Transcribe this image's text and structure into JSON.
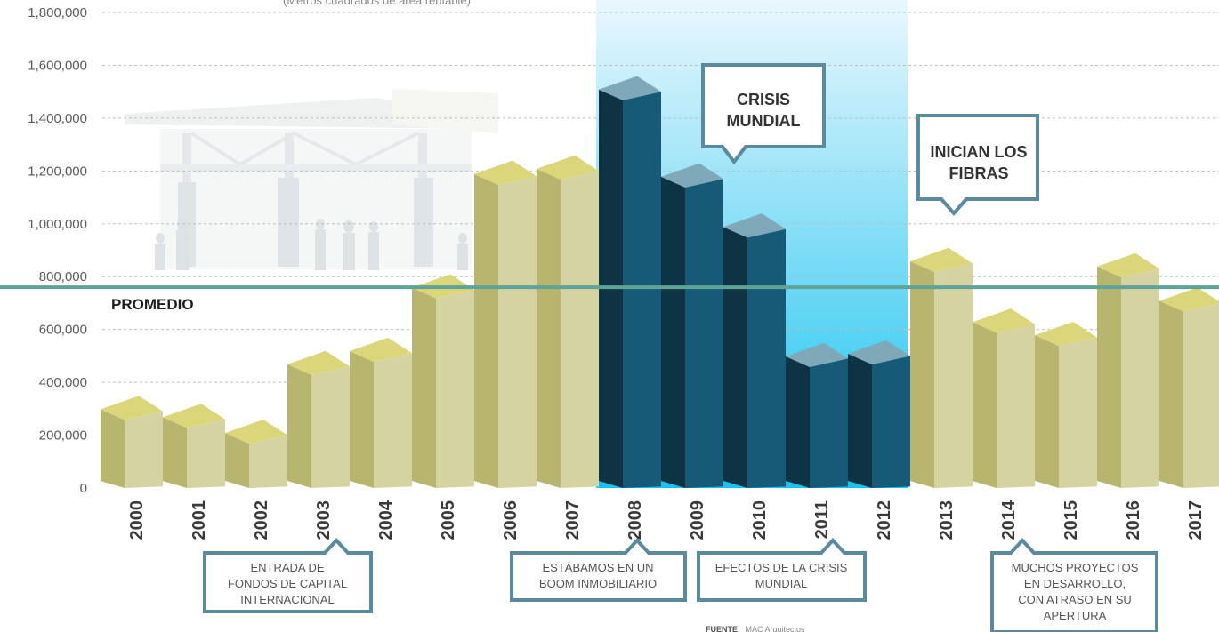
{
  "chart_data": {
    "type": "bar",
    "subtitle": "(Metros cuadrados de área rentable)",
    "categories": [
      "2000",
      "2001",
      "2002",
      "2003",
      "2004",
      "2005",
      "2006",
      "2007",
      "2008",
      "2009",
      "2010",
      "2011",
      "2012",
      "2013",
      "2014",
      "2015",
      "2016",
      "2017"
    ],
    "values": [
      290000,
      260000,
      200000,
      460000,
      510000,
      750000,
      1180000,
      1200000,
      1500000,
      1170000,
      980000,
      490000,
      500000,
      850000,
      620000,
      570000,
      830000,
      700000
    ],
    "highlight_years": [
      "2008",
      "2009",
      "2010",
      "2011",
      "2012"
    ],
    "ylim": [
      0,
      1800000
    ],
    "yticks": [
      "0",
      "200,000",
      "400,000",
      "600,000",
      "800,000",
      "1,000,000",
      "1,200,000",
      "1,400,000",
      "1,600,000",
      "1,800,000"
    ],
    "grid": true,
    "average": 760000,
    "average_label": "PROMEDIO",
    "colors": {
      "bar_front": "#d6d3a2",
      "bar_side": "#b8b66e",
      "bar_top": "#dcd67a",
      "crisis_front": "#165a78",
      "crisis_side": "#0e3344",
      "crisis_top": "#7fa8b8",
      "average_line": "#5fa396",
      "callout_border": "#5b8a9c",
      "highlight_top": "#eaf7fd",
      "highlight_bottom": "#16c3ef"
    }
  },
  "callouts": {
    "crisis": [
      "CRISIS",
      "MUNDIAL"
    ],
    "fibras": [
      "INICIAN LOS",
      "FIBRAS"
    ],
    "entrada": [
      "ENTRADA DE",
      "FONDOS DE CAPITAL",
      "INTERNACIONAL"
    ],
    "boom": [
      "ESTÁBAMOS EN UN",
      "BOOM INMOBILIARIO"
    ],
    "efectos": [
      "EFECTOS DE LA CRISIS",
      "MUNDIAL"
    ],
    "muchos": [
      "MUCHOS PROYECTOS",
      "EN DESARROLLO,",
      "CON ATRASO EN SU",
      "APERTURA"
    ]
  },
  "source": {
    "label": "FUENTE:",
    "text": "MAC Arquitectos"
  }
}
